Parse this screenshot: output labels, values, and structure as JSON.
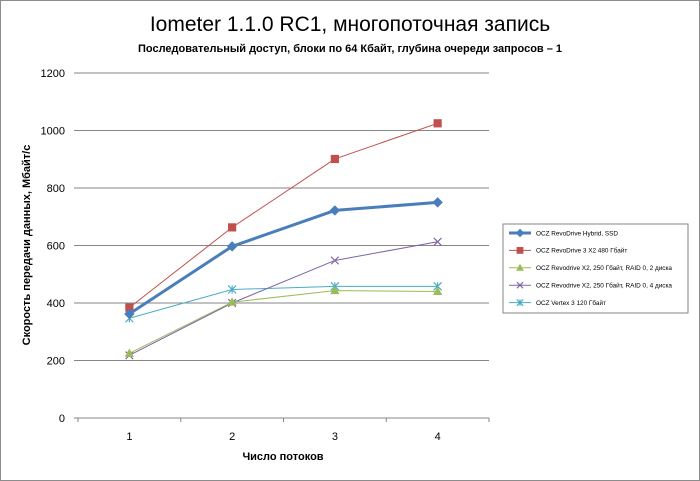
{
  "chart_data": {
    "type": "line",
    "title": "Iometer 1.1.0 RC1, многопоточная запись",
    "subtitle": "Последовательный  доступ, блоки  по 64 Кбайт,  глубина очереди запросов  – 1",
    "xlabel": "Число  потоков",
    "ylabel": "Скорость  передачи данных, Мбайт/с",
    "categories": [
      "1",
      "2",
      "3",
      "4"
    ],
    "ylim": [
      0,
      1200
    ],
    "yticks": [
      "0",
      "200",
      "400",
      "600",
      "800",
      "1000",
      "1200"
    ],
    "grid": true,
    "legend_position": "right",
    "series": [
      {
        "name": "OCZ RevoDrive Hybrid, SSD",
        "values": [
          362,
          597,
          722,
          750
        ],
        "color": "#4a7ebb",
        "marker": "diamond",
        "width": 3
      },
      {
        "name": "OCZ RevoDrive 3 X2 480 Гбайт",
        "values": [
          384,
          663,
          901,
          1025
        ],
        "color": "#c0504d",
        "marker": "square",
        "width": 1
      },
      {
        "name": "OCZ Revodrive X2, 250 Гбайт, RAID 0, 2 диска",
        "values": [
          225,
          403,
          443,
          440
        ],
        "color": "#9bbb59",
        "marker": "triangle",
        "width": 1
      },
      {
        "name": "OCZ Revodrive X2, 250 Гбайт, RAID 0, 4 диска",
        "values": [
          218,
          400,
          548,
          613
        ],
        "color": "#8064a2",
        "marker": "x",
        "width": 1
      },
      {
        "name": "OCZ Vertex 3 120 Гбайт",
        "values": [
          347,
          447,
          458,
          458
        ],
        "color": "#4bacc6",
        "marker": "star",
        "width": 1
      }
    ]
  }
}
